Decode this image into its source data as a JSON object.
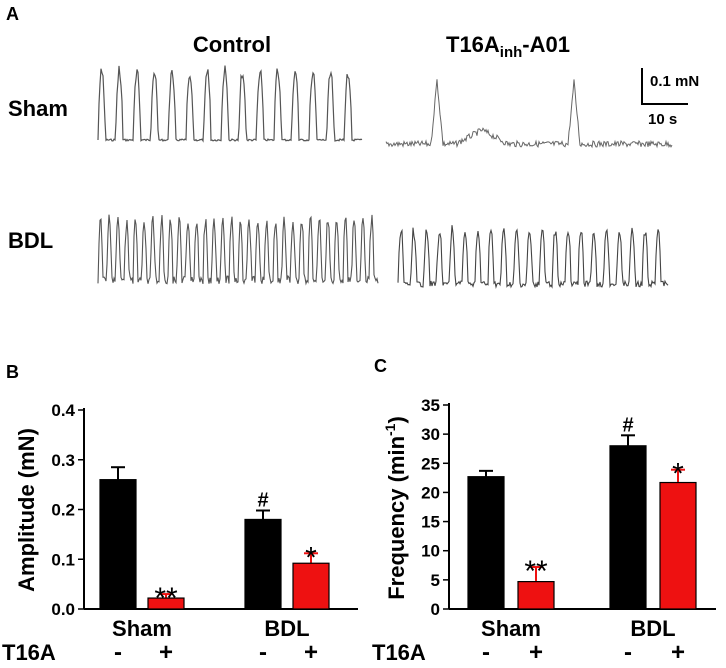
{
  "panel_labels": {
    "a": "A",
    "b": "B",
    "c": "C"
  },
  "traces": {
    "column_control": "Control",
    "column_inhibitor_main": "T16A",
    "column_inhibitor_sub": "inh",
    "column_inhibitor_suffix": "-A01",
    "row_sham": "Sham",
    "row_bdl": "BDL",
    "scale_force": "0.1 mN",
    "scale_time": "10 s"
  },
  "chart_data": [
    {
      "type": "bar",
      "title": "",
      "ylabel": "Amplitude (mN)",
      "ylim": [
        0,
        0.4
      ],
      "yticks": [
        "0.0",
        "0.1",
        "0.2",
        "0.3",
        "0.4"
      ],
      "ytick_values": [
        0,
        0.1,
        0.2,
        0.3,
        0.4
      ],
      "groups": [
        "Sham",
        "BDL"
      ],
      "treatment_label": "T16A",
      "treatment_signs": [
        "-",
        "+",
        "-",
        "+"
      ],
      "series": [
        {
          "name": "Control (-)",
          "color": "#000000",
          "values": [
            0.26,
            0.18
          ],
          "errors": [
            0.025,
            0.018
          ]
        },
        {
          "name": "T16A (+)",
          "color": "#ee1111",
          "values": [
            0.022,
            0.092
          ],
          "errors": [
            0.008,
            0.02
          ]
        }
      ],
      "annotations": [
        {
          "text": "**",
          "group": 0,
          "series": 1
        },
        {
          "text": "#",
          "group": 1,
          "series": 0
        },
        {
          "text": "*",
          "group": 1,
          "series": 1
        }
      ]
    },
    {
      "type": "bar",
      "title": "",
      "ylabel_main": "Frequency (min",
      "ylabel_sup": "-1",
      "ylabel_end": ")",
      "ylim": [
        0,
        35
      ],
      "yticks": [
        "0",
        "5",
        "10",
        "15",
        "20",
        "25",
        "30",
        "35"
      ],
      "ytick_values": [
        0,
        5,
        10,
        15,
        20,
        25,
        30,
        35
      ],
      "groups": [
        "Sham",
        "BDL"
      ],
      "treatment_label": "T16A",
      "treatment_signs": [
        "-",
        "+",
        "-",
        "+"
      ],
      "series": [
        {
          "name": "Control (-)",
          "color": "#000000",
          "values": [
            22.7,
            28.0
          ],
          "errors": [
            1.0,
            1.8
          ]
        },
        {
          "name": "T16A (+)",
          "color": "#ee1111",
          "values": [
            4.7,
            21.7
          ],
          "errors": [
            2.5,
            2.2
          ]
        }
      ],
      "annotations": [
        {
          "text": "**",
          "group": 0,
          "series": 1
        },
        {
          "text": "#",
          "group": 1,
          "series": 0
        },
        {
          "text": "*",
          "group": 1,
          "series": 1
        }
      ]
    }
  ]
}
